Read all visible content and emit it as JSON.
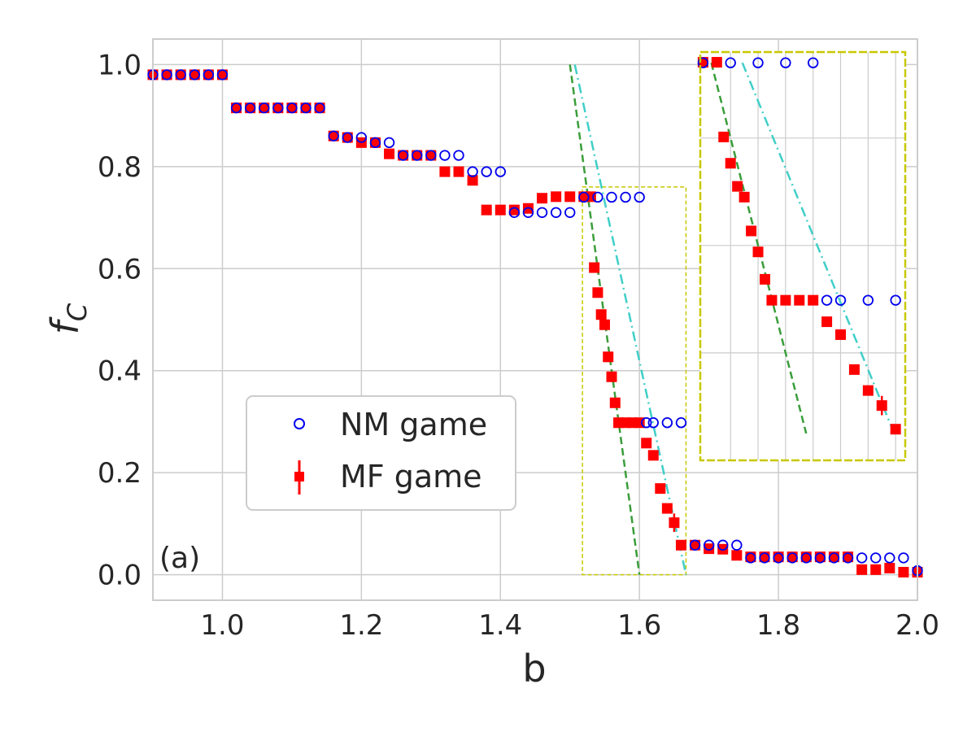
{
  "chart_data": {
    "type": "scatter",
    "panel_label": "(a)",
    "xlabel": "b",
    "ylabel_main": "f",
    "ylabel_sub": "C",
    "xlim": [
      0.9,
      2.0
    ],
    "ylim": [
      -0.05,
      1.05
    ],
    "xticks": [
      1.0,
      1.2,
      1.4,
      1.6,
      1.8,
      2.0
    ],
    "xtick_labels": [
      "1.0",
      "1.2",
      "1.4",
      "1.6",
      "1.8",
      "2.0"
    ],
    "yticks": [
      0.0,
      0.2,
      0.4,
      0.6,
      0.8,
      1.0
    ],
    "ytick_labels": [
      "0.0",
      "0.2",
      "0.4",
      "0.6",
      "0.8",
      "1.0"
    ],
    "grid": true,
    "legend_position": "lower-left",
    "colors": {
      "nm": "#0000ee",
      "mf": "#ff0000",
      "fit_green": "#3a9d3a",
      "fit_cyan": "#40cfc8",
      "box": "#c8c800",
      "grid": "#cccccc",
      "axes": "#cccccc"
    },
    "series": [
      {
        "name": "NM game",
        "marker": "open-circle",
        "x": [
          0.9,
          0.92,
          0.94,
          0.96,
          0.98,
          1.0,
          1.02,
          1.04,
          1.06,
          1.08,
          1.1,
          1.12,
          1.14,
          1.16,
          1.18,
          1.2,
          1.22,
          1.24,
          1.26,
          1.28,
          1.3,
          1.32,
          1.34,
          1.36,
          1.38,
          1.4,
          1.42,
          1.44,
          1.46,
          1.48,
          1.5,
          1.52,
          1.54,
          1.56,
          1.58,
          1.6,
          1.61,
          1.62,
          1.64,
          1.66,
          1.68,
          1.7,
          1.72,
          1.74,
          1.76,
          1.78,
          1.8,
          1.82,
          1.84,
          1.86,
          1.88,
          1.9,
          1.92,
          1.94,
          1.96,
          1.98,
          2.0
        ],
        "y": [
          0.98,
          0.98,
          0.98,
          0.98,
          0.98,
          0.98,
          0.915,
          0.915,
          0.915,
          0.915,
          0.915,
          0.915,
          0.915,
          0.86,
          0.857,
          0.857,
          0.847,
          0.847,
          0.822,
          0.822,
          0.822,
          0.822,
          0.822,
          0.79,
          0.79,
          0.79,
          0.71,
          0.71,
          0.71,
          0.71,
          0.71,
          0.74,
          0.74,
          0.74,
          0.74,
          0.74,
          0.298,
          0.298,
          0.298,
          0.298,
          0.058,
          0.058,
          0.058,
          0.058,
          0.033,
          0.033,
          0.033,
          0.033,
          0.033,
          0.033,
          0.033,
          0.033,
          0.033,
          0.033,
          0.033,
          0.033,
          0.008
        ]
      },
      {
        "name": "MF game",
        "marker": "filled-square-with-errorbar",
        "x": [
          0.9,
          0.92,
          0.94,
          0.96,
          0.98,
          1.0,
          1.02,
          1.04,
          1.06,
          1.08,
          1.1,
          1.12,
          1.14,
          1.16,
          1.18,
          1.2,
          1.22,
          1.24,
          1.26,
          1.28,
          1.3,
          1.32,
          1.34,
          1.36,
          1.38,
          1.4,
          1.42,
          1.44,
          1.46,
          1.48,
          1.5,
          1.52,
          1.53,
          1.535,
          1.54,
          1.545,
          1.55,
          1.555,
          1.56,
          1.565,
          1.57,
          1.58,
          1.59,
          1.6,
          1.61,
          1.62,
          1.63,
          1.64,
          1.65,
          1.66,
          1.68,
          1.7,
          1.72,
          1.74,
          1.76,
          1.78,
          1.8,
          1.82,
          1.84,
          1.86,
          1.88,
          1.9,
          1.92,
          1.94,
          1.96,
          1.98,
          2.0
        ],
        "y": [
          0.98,
          0.98,
          0.98,
          0.98,
          0.98,
          0.98,
          0.915,
          0.915,
          0.915,
          0.915,
          0.915,
          0.915,
          0.915,
          0.86,
          0.857,
          0.847,
          0.847,
          0.825,
          0.822,
          0.822,
          0.822,
          0.79,
          0.79,
          0.773,
          0.715,
          0.715,
          0.715,
          0.718,
          0.738,
          0.741,
          0.741,
          0.741,
          0.741,
          0.602,
          0.553,
          0.51,
          0.49,
          0.427,
          0.388,
          0.337,
          0.298,
          0.298,
          0.298,
          0.298,
          0.258,
          0.234,
          0.169,
          0.13,
          0.102,
          0.058,
          0.058,
          0.051,
          0.05,
          0.038,
          0.035,
          0.035,
          0.035,
          0.035,
          0.035,
          0.035,
          0.035,
          0.035,
          0.01,
          0.01,
          0.013,
          0.005,
          0.005
        ],
        "yerr": [
          0,
          0,
          0,
          0,
          0,
          0,
          0,
          0,
          0,
          0,
          0,
          0,
          0,
          0,
          0,
          0,
          0,
          0,
          0,
          0,
          0,
          0,
          0,
          0,
          0,
          0,
          0,
          0,
          0,
          0,
          0,
          0,
          0,
          0,
          0,
          0,
          0,
          0,
          0,
          0,
          0,
          0,
          0,
          0,
          0,
          0,
          0,
          0.006,
          0.018,
          0,
          0,
          0,
          0,
          0,
          0,
          0,
          0,
          0,
          0,
          0,
          0,
          0,
          0,
          0,
          0,
          0,
          0
        ]
      }
    ],
    "fit_lines": [
      {
        "name": "green-dashed-fit",
        "style": "dashed",
        "x": [
          1.5,
          1.6
        ],
        "y": [
          1.0,
          0.0
        ]
      },
      {
        "name": "cyan-dashdot-fit",
        "style": "dashdot",
        "x": [
          1.507,
          1.667
        ],
        "y": [
          1.0,
          0.0
        ]
      }
    ],
    "zoom_box": {
      "x": [
        1.518,
        1.667
      ],
      "y": [
        0.0,
        0.76
      ]
    },
    "inset": {
      "xlim": [
        1.518,
        1.667
      ],
      "ylim": [
        0.0,
        0.76
      ],
      "x_grid_values": [
        1.54,
        1.56,
        1.58,
        1.6,
        1.62,
        1.64,
        1.66
      ],
      "y_grid_values": [
        0.2,
        0.4,
        0.6
      ]
    }
  }
}
